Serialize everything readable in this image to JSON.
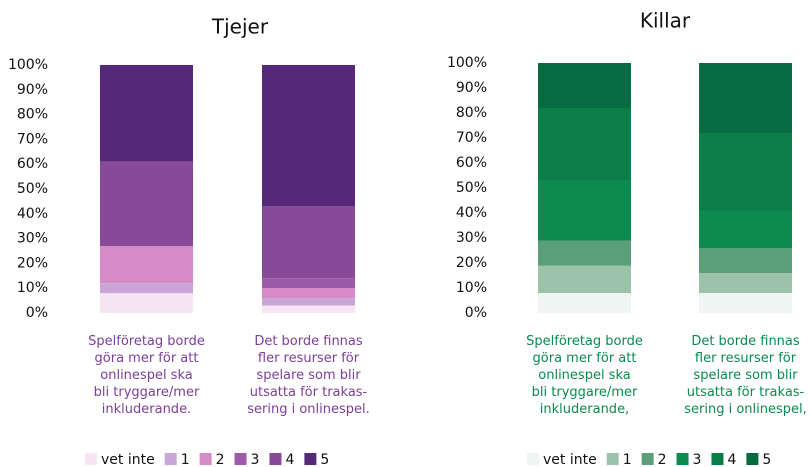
{
  "chart_data": [
    {
      "type": "bar",
      "stacked": true,
      "title": "Tjejer",
      "categories": [
        "Spelföretag borde\ngöra mer för att\nonlinespel ska\nbli tryggare/mer\ninkluderande.",
        "Det borde finnas\nfler resurser för\nspelare som blir\nutsatta för trakas-\nsering i onlinespel."
      ],
      "category_color": "#7b3f98",
      "series": [
        {
          "name": "vet inte",
          "color": "#f5e6f1",
          "values": [
            8,
            3
          ]
        },
        {
          "name": "1",
          "color": "#caa6d8",
          "values": [
            4,
            3
          ]
        },
        {
          "name": "2",
          "color": "#d68ac6",
          "values": [
            15,
            4
          ]
        },
        {
          "name": "3",
          "color": "#9c5aa8",
          "values": [
            0,
            4
          ]
        },
        {
          "name": "4",
          "color": "#874a98",
          "values": [
            34,
            29
          ]
        },
        {
          "name": "5",
          "color": "#55287a",
          "values": [
            39,
            57
          ]
        }
      ],
      "ylim": [
        0,
        100
      ],
      "yticks": [
        {
          "value": 0,
          "label": "0%"
        },
        {
          "value": 10,
          "label": "10%"
        },
        {
          "value": 20,
          "label": "20%"
        },
        {
          "value": 30,
          "label": "30%"
        },
        {
          "value": 40,
          "label": "40%"
        },
        {
          "value": 50,
          "label": "50%"
        },
        {
          "value": 60,
          "label": "60%"
        },
        {
          "value": 70,
          "label": "70%"
        },
        {
          "value": 80,
          "label": "80%"
        },
        {
          "value": 90,
          "label": "90%"
        },
        {
          "value": 100,
          "label": "100%"
        }
      ]
    },
    {
      "type": "bar",
      "stacked": true,
      "title": "Killar",
      "categories": [
        "Spelföretag borde\ngöra mer för att\nonlinespel ska\nbli tryggare/mer\ninkluderande,",
        "Det borde finnas\nfler resurser för\nspelare som blir\nutsatta för trakas-\nsering i onlinespel,"
      ],
      "category_color": "#0a8a50",
      "series": [
        {
          "name": "vet inte",
          "color": "#eef5f2",
          "values": [
            8,
            8
          ]
        },
        {
          "name": "1",
          "color": "#9cc2a9",
          "values": [
            11,
            8
          ]
        },
        {
          "name": "2",
          "color": "#5a9e7a",
          "values": [
            10,
            10
          ]
        },
        {
          "name": "3",
          "color": "#0e8a50",
          "values": [
            24,
            15
          ]
        },
        {
          "name": "4",
          "color": "#0a7d48",
          "values": [
            29,
            31
          ]
        },
        {
          "name": "5",
          "color": "#066b40",
          "values": [
            18,
            28
          ]
        }
      ],
      "ylim": [
        0,
        100
      ],
      "yticks": [
        {
          "value": 0,
          "label": "0%"
        },
        {
          "value": 10,
          "label": "10%"
        },
        {
          "value": 20,
          "label": "20%"
        },
        {
          "value": 30,
          "label": "30%"
        },
        {
          "value": 40,
          "label": "40%"
        },
        {
          "value": 50,
          "label": "50%"
        },
        {
          "value": 60,
          "label": "60%"
        },
        {
          "value": 70,
          "label": "70%"
        },
        {
          "value": 80,
          "label": "80%"
        },
        {
          "value": 90,
          "label": "90%"
        },
        {
          "value": 100,
          "label": "100%"
        }
      ]
    }
  ]
}
